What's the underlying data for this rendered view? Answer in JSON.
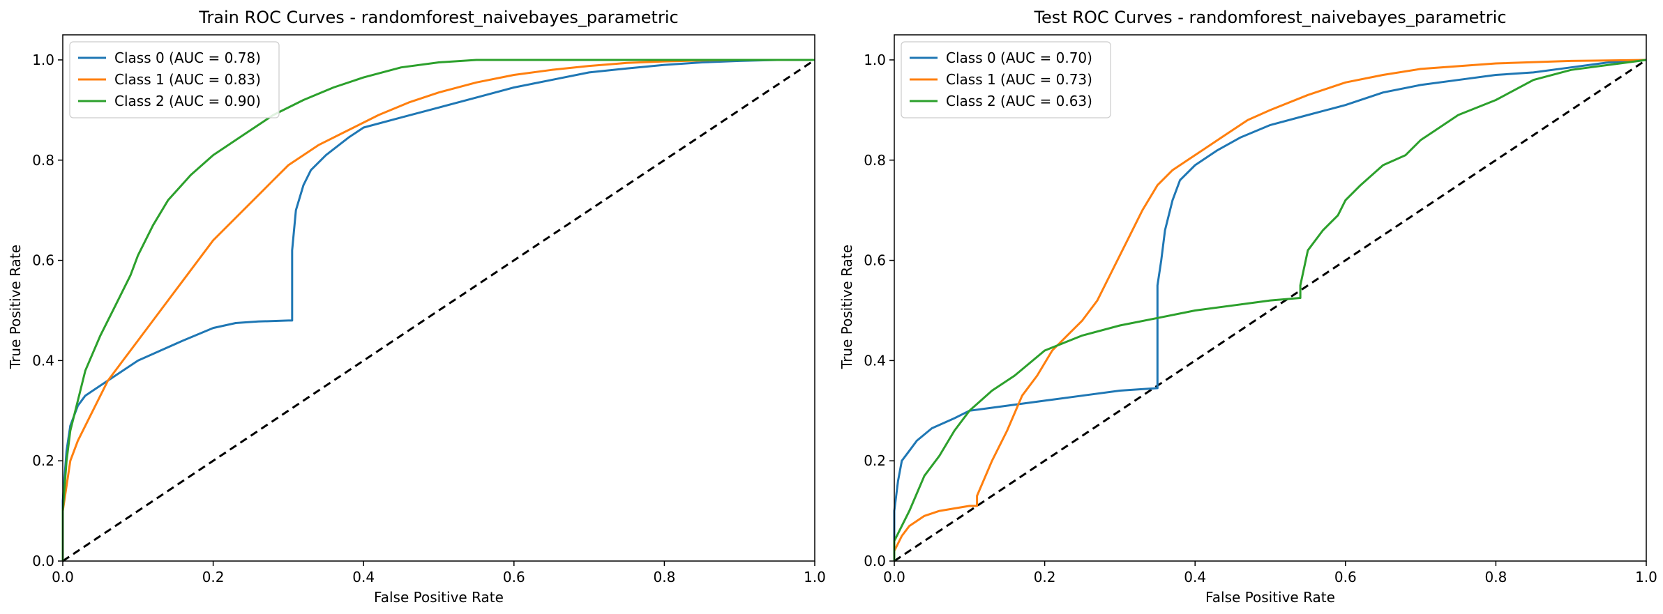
{
  "chart_data": [
    {
      "type": "line",
      "title": "Train ROC Curves - randomforest_naivebayes_parametric",
      "xlabel": "False Positive Rate",
      "ylabel": "True Positive Rate",
      "xlim": [
        0.0,
        1.0
      ],
      "ylim": [
        0.0,
        1.05
      ],
      "xticks": [
        0.0,
        0.2,
        0.4,
        0.6,
        0.8,
        1.0
      ],
      "yticks": [
        0.0,
        0.2,
        0.4,
        0.6,
        0.8,
        1.0
      ],
      "xtick_labels": [
        "0.0",
        "0.2",
        "0.4",
        "0.6",
        "0.8",
        "1.0"
      ],
      "ytick_labels": [
        "0.0",
        "0.2",
        "0.4",
        "0.6",
        "0.8",
        "1.0"
      ],
      "grid": false,
      "legend_position": "top-left",
      "diagonal": {
        "x": [
          0.0,
          1.0
        ],
        "y": [
          0.0,
          1.0
        ],
        "color": "#000000",
        "style": "dashed"
      },
      "series": [
        {
          "name": "Class 0 (AUC = 0.78)",
          "color": "#1f77b4",
          "x": [
            0.0,
            0.0,
            0.005,
            0.01,
            0.02,
            0.03,
            0.05,
            0.08,
            0.1,
            0.13,
            0.16,
            0.2,
            0.23,
            0.26,
            0.3,
            0.305,
            0.305,
            0.31,
            0.32,
            0.33,
            0.35,
            0.38,
            0.4,
            0.45,
            0.5,
            0.55,
            0.6,
            0.65,
            0.7,
            0.75,
            0.8,
            0.85,
            0.9,
            0.95,
            1.0
          ],
          "y": [
            0.0,
            0.12,
            0.22,
            0.27,
            0.31,
            0.33,
            0.35,
            0.38,
            0.4,
            0.42,
            0.44,
            0.465,
            0.475,
            0.478,
            0.48,
            0.48,
            0.62,
            0.7,
            0.75,
            0.78,
            0.81,
            0.845,
            0.865,
            0.885,
            0.905,
            0.925,
            0.945,
            0.96,
            0.975,
            0.983,
            0.99,
            0.995,
            0.998,
            1.0,
            1.0
          ]
        },
        {
          "name": "Class 1 (AUC = 0.83)",
          "color": "#ff7f0e",
          "x": [
            0.0,
            0.0,
            0.01,
            0.02,
            0.04,
            0.06,
            0.08,
            0.1,
            0.13,
            0.16,
            0.2,
            0.24,
            0.28,
            0.3,
            0.34,
            0.38,
            0.42,
            0.46,
            0.5,
            0.55,
            0.6,
            0.65,
            0.7,
            0.75,
            0.8,
            0.85,
            0.9,
            1.0
          ],
          "y": [
            0.0,
            0.1,
            0.2,
            0.24,
            0.3,
            0.36,
            0.4,
            0.44,
            0.5,
            0.56,
            0.64,
            0.7,
            0.76,
            0.79,
            0.83,
            0.86,
            0.89,
            0.915,
            0.935,
            0.955,
            0.97,
            0.98,
            0.988,
            0.994,
            0.997,
            0.999,
            1.0,
            1.0
          ]
        },
        {
          "name": "Class 2 (AUC = 0.90)",
          "color": "#2ca02c",
          "x": [
            0.0,
            0.0,
            0.005,
            0.01,
            0.02,
            0.03,
            0.05,
            0.07,
            0.09,
            0.1,
            0.12,
            0.14,
            0.17,
            0.2,
            0.24,
            0.28,
            0.32,
            0.36,
            0.4,
            0.45,
            0.5,
            0.55,
            0.6,
            0.65,
            0.7,
            0.8,
            0.9,
            1.0
          ],
          "y": [
            0.0,
            0.1,
            0.2,
            0.26,
            0.32,
            0.38,
            0.45,
            0.51,
            0.57,
            0.61,
            0.67,
            0.72,
            0.77,
            0.81,
            0.85,
            0.89,
            0.92,
            0.945,
            0.965,
            0.985,
            0.995,
            1.0,
            1.0,
            1.0,
            1.0,
            1.0,
            1.0,
            1.0
          ]
        }
      ]
    },
    {
      "type": "line",
      "title": "Test ROC Curves - randomforest_naivebayes_parametric",
      "xlabel": "False Positive Rate",
      "ylabel": "True Positive Rate",
      "xlim": [
        0.0,
        1.0
      ],
      "ylim": [
        0.0,
        1.05
      ],
      "xticks": [
        0.0,
        0.2,
        0.4,
        0.6,
        0.8,
        1.0
      ],
      "yticks": [
        0.0,
        0.2,
        0.4,
        0.6,
        0.8,
        1.0
      ],
      "xtick_labels": [
        "0.0",
        "0.2",
        "0.4",
        "0.6",
        "0.8",
        "1.0"
      ],
      "ytick_labels": [
        "0.0",
        "0.2",
        "0.4",
        "0.6",
        "0.8",
        "1.0"
      ],
      "grid": false,
      "legend_position": "top-left",
      "diagonal": {
        "x": [
          0.0,
          1.0
        ],
        "y": [
          0.0,
          1.0
        ],
        "color": "#000000",
        "style": "dashed"
      },
      "series": [
        {
          "name": "Class 0 (AUC = 0.70)",
          "color": "#1f77b4",
          "x": [
            0.0,
            0.0,
            0.005,
            0.01,
            0.02,
            0.03,
            0.05,
            0.08,
            0.1,
            0.15,
            0.2,
            0.25,
            0.3,
            0.35,
            0.35,
            0.355,
            0.36,
            0.37,
            0.38,
            0.4,
            0.43,
            0.46,
            0.5,
            0.55,
            0.6,
            0.65,
            0.7,
            0.75,
            0.8,
            0.85,
            0.9,
            0.95,
            1.0
          ],
          "y": [
            0.0,
            0.1,
            0.16,
            0.2,
            0.22,
            0.24,
            0.265,
            0.285,
            0.3,
            0.31,
            0.32,
            0.33,
            0.34,
            0.345,
            0.55,
            0.6,
            0.66,
            0.72,
            0.76,
            0.79,
            0.82,
            0.845,
            0.87,
            0.89,
            0.91,
            0.935,
            0.95,
            0.96,
            0.97,
            0.975,
            0.985,
            0.995,
            1.0
          ]
        },
        {
          "name": "Class 1 (AUC = 0.73)",
          "color": "#ff7f0e",
          "x": [
            0.0,
            0.0,
            0.01,
            0.02,
            0.04,
            0.06,
            0.08,
            0.1,
            0.11,
            0.11,
            0.13,
            0.15,
            0.17,
            0.19,
            0.21,
            0.23,
            0.25,
            0.27,
            0.29,
            0.31,
            0.33,
            0.35,
            0.37,
            0.39,
            0.41,
            0.44,
            0.47,
            0.5,
            0.55,
            0.6,
            0.65,
            0.7,
            0.8,
            0.9,
            1.0
          ],
          "y": [
            0.0,
            0.02,
            0.05,
            0.07,
            0.09,
            0.1,
            0.105,
            0.11,
            0.11,
            0.13,
            0.2,
            0.26,
            0.33,
            0.37,
            0.42,
            0.45,
            0.48,
            0.52,
            0.58,
            0.64,
            0.7,
            0.75,
            0.78,
            0.8,
            0.82,
            0.85,
            0.88,
            0.9,
            0.93,
            0.955,
            0.97,
            0.982,
            0.993,
            0.998,
            1.0
          ]
        },
        {
          "name": "Class 2 (AUC = 0.63)",
          "color": "#2ca02c",
          "x": [
            0.0,
            0.0,
            0.01,
            0.02,
            0.04,
            0.06,
            0.08,
            0.1,
            0.13,
            0.16,
            0.2,
            0.25,
            0.3,
            0.35,
            0.4,
            0.45,
            0.5,
            0.54,
            0.54,
            0.55,
            0.57,
            0.59,
            0.6,
            0.62,
            0.65,
            0.68,
            0.7,
            0.72,
            0.75,
            0.8,
            0.85,
            0.9,
            0.95,
            1.0
          ],
          "y": [
            0.0,
            0.04,
            0.07,
            0.1,
            0.17,
            0.21,
            0.26,
            0.3,
            0.34,
            0.37,
            0.42,
            0.45,
            0.47,
            0.485,
            0.5,
            0.51,
            0.52,
            0.525,
            0.55,
            0.62,
            0.66,
            0.69,
            0.72,
            0.75,
            0.79,
            0.81,
            0.84,
            0.86,
            0.89,
            0.92,
            0.96,
            0.98,
            0.99,
            1.0
          ]
        }
      ]
    }
  ]
}
